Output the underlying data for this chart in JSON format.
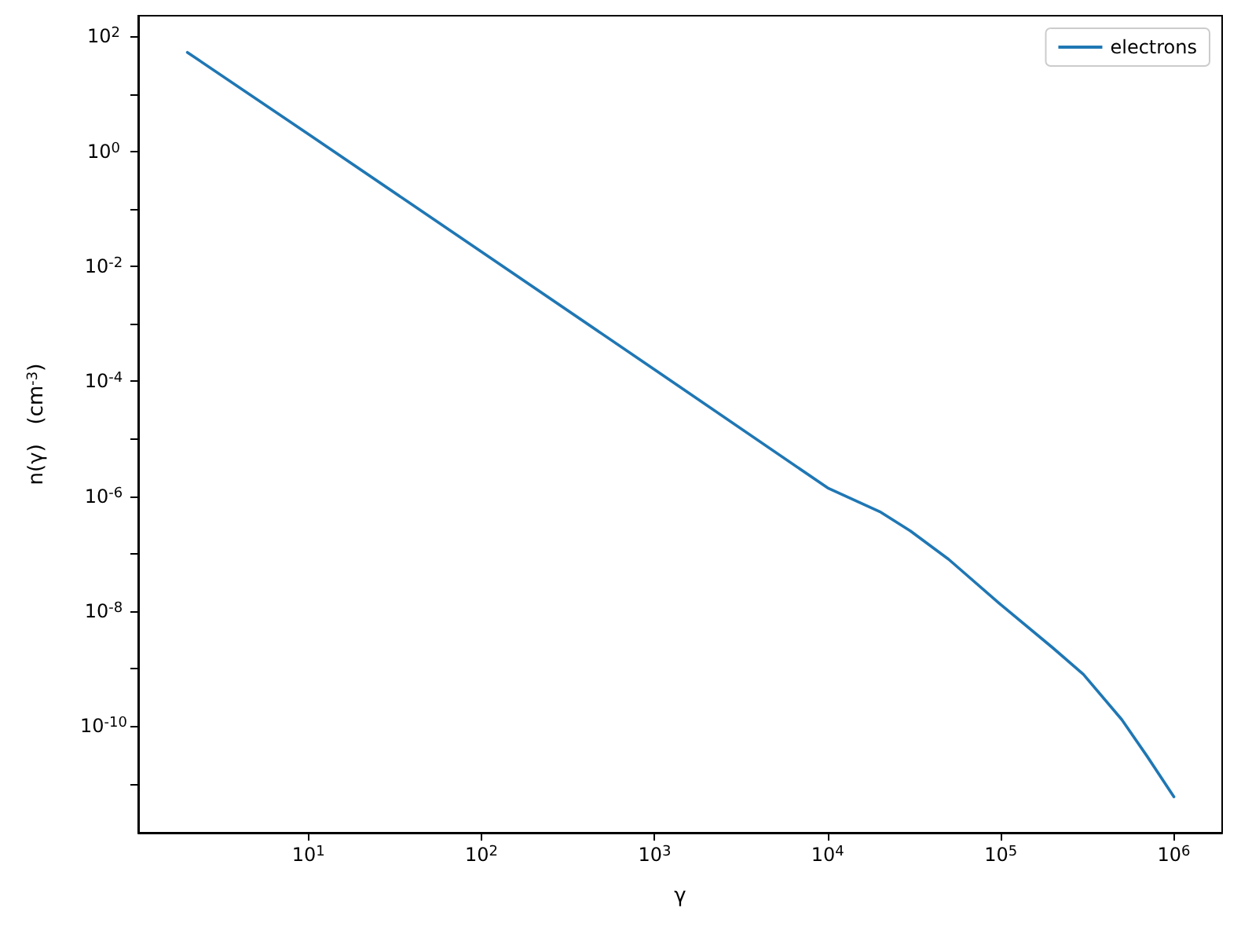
{
  "chart_data": {
    "type": "line",
    "xlabel": "γ",
    "ylabel": "n(γ)   (cm$^{-3}$)",
    "log": "xy",
    "x": [
      2,
      10,
      100,
      1000,
      10000,
      20000,
      30000,
      50000,
      100000,
      200000,
      300000,
      500000,
      700000,
      1000000
    ],
    "series": [
      {
        "name": "electrons",
        "color": "#1f77b4",
        "values": [
          53,
          2.0,
          0.018,
          0.00016,
          1.4e-06,
          5.4e-07,
          2.5e-07,
          8e-08,
          1.3e-08,
          2.3e-09,
          8e-10,
          1.3e-10,
          3e-11,
          5.9e-12
        ]
      }
    ],
    "xlim": [
      1.04,
      1900000.0
    ],
    "ylim": [
      1.4e-12,
      230
    ],
    "xticks": [
      {
        "value": 10,
        "label": "10$^{1}$"
      },
      {
        "value": 100,
        "label": "10$^{2}$"
      },
      {
        "value": 1000,
        "label": "10$^{3}$"
      },
      {
        "value": 10000,
        "label": "10$^{4}$"
      },
      {
        "value": 100000,
        "label": "10$^{5}$"
      },
      {
        "value": 1000000,
        "label": "10$^{6}$"
      }
    ],
    "yticks": [
      {
        "value": 1e-11,
        "label": null
      },
      {
        "value": 1e-10,
        "label": "10$^{-10}$"
      },
      {
        "value": 1e-09,
        "label": null
      },
      {
        "value": 1e-08,
        "label": "10$^{-8}$"
      },
      {
        "value": 1e-07,
        "label": null
      },
      {
        "value": 1e-06,
        "label": "10$^{-6}$"
      },
      {
        "value": 1e-05,
        "label": null
      },
      {
        "value": 0.0001,
        "label": "10$^{-4}$"
      },
      {
        "value": 0.001,
        "label": null
      },
      {
        "value": 0.01,
        "label": "10$^{-2}$"
      },
      {
        "value": 0.1,
        "label": null
      },
      {
        "value": 1,
        "label": "10$^{0}$"
      },
      {
        "value": 10,
        "label": null
      },
      {
        "value": 100,
        "label": "10$^{2}$"
      }
    ],
    "legend": "top right",
    "grid": false,
    "marker": "none",
    "line_style": "solid"
  }
}
